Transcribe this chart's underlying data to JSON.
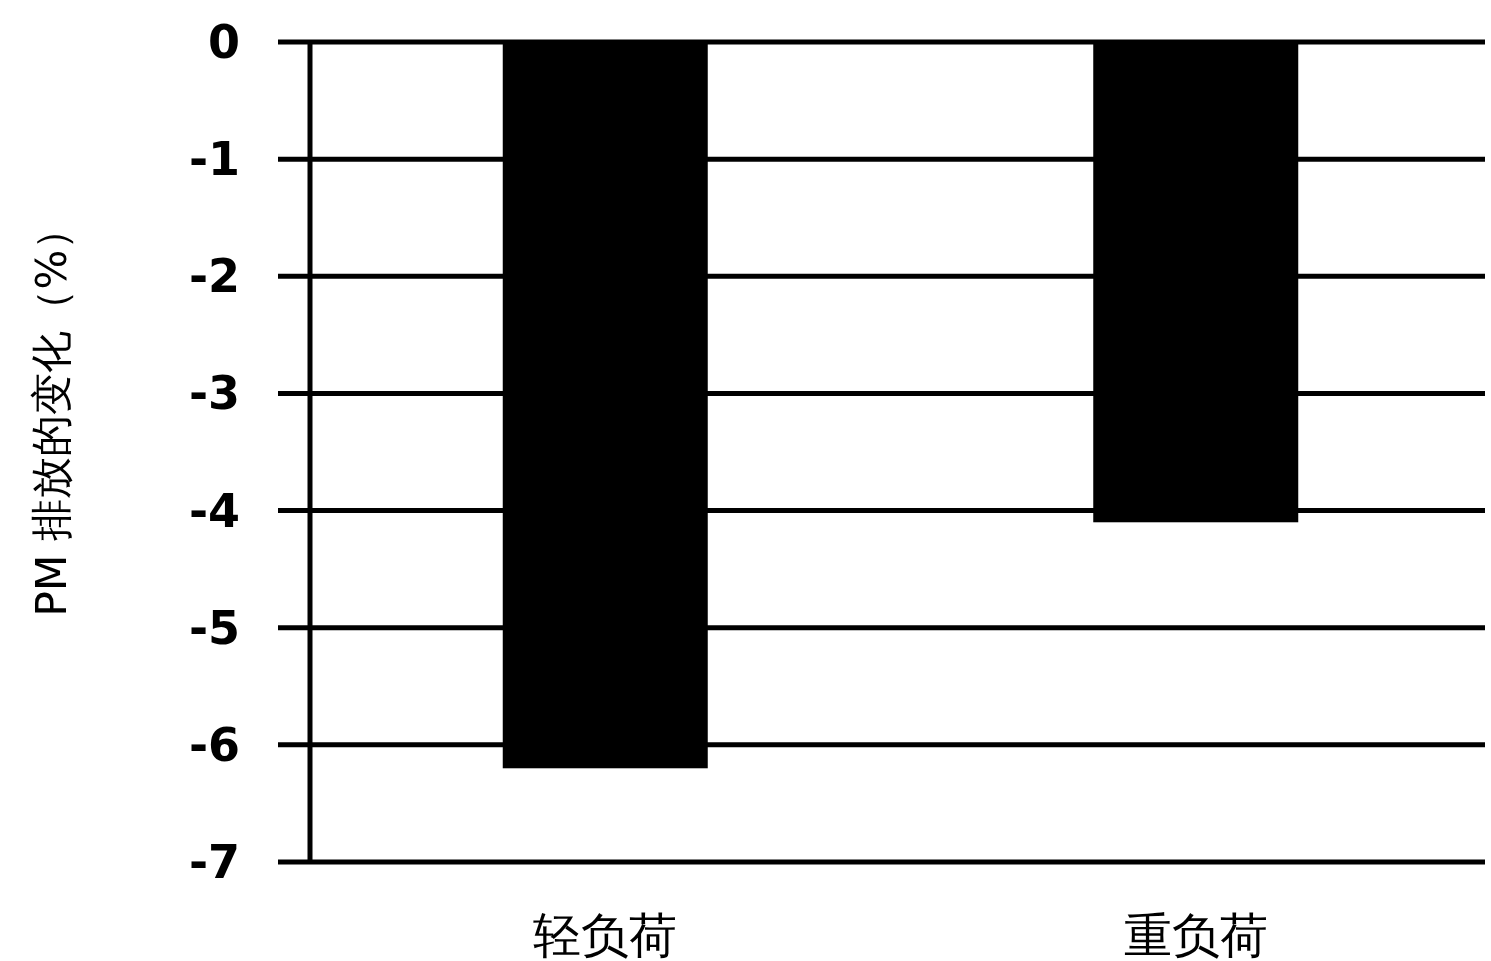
{
  "chart_data": {
    "type": "bar",
    "ylabel": "PM 排放的变化（%）",
    "categories": [
      "轻负荷",
      "重负荷"
    ],
    "values": [
      -6.2,
      -4.1
    ],
    "color": "#000000",
    "ylim": [
      -7,
      0
    ],
    "yticks": [
      0,
      -1,
      -2,
      -3,
      -4,
      -5,
      -6,
      -7
    ],
    "grid": "y"
  }
}
